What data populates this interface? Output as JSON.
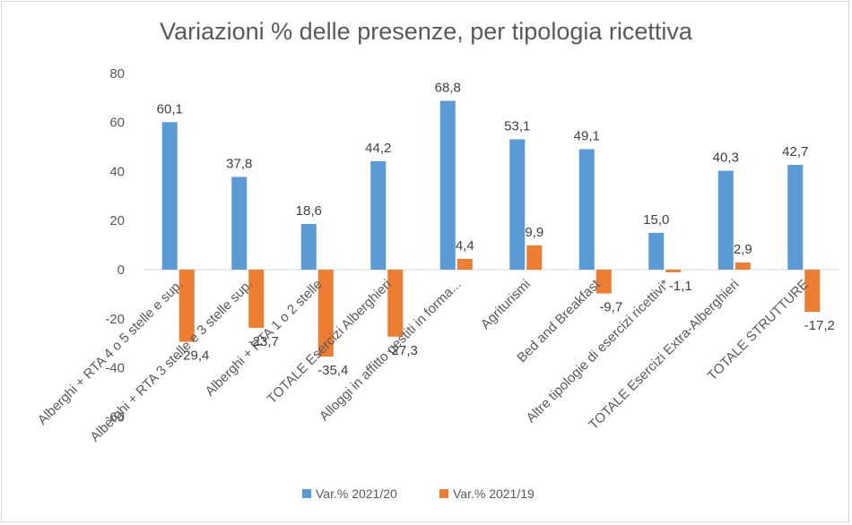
{
  "chart_data": {
    "type": "bar",
    "title": "Variazioni % delle presenze, per tipologia ricettiva",
    "categories": [
      "Alberghi + RTA 4 o 5 stelle e sup.",
      "Alberghi + RTA 3 stelle e 3 stelle sup.",
      "Alberghi + RTA 1 o 2 stelle",
      "TOTALE Esercizi Alberghieri",
      "Alloggi in affitto gestiti in forma...",
      "Agriturismi",
      "Bed and Breakfast",
      "Altre tipologie di esercizi ricettivi*",
      "TOTALE Esercizi Extra-Alberghieri",
      "TOTALE STRUTTURE"
    ],
    "series": [
      {
        "name": "Var.% 2021/20",
        "color": "#5b9bd5",
        "values": [
          60.1,
          37.8,
          18.6,
          44.2,
          68.8,
          53.1,
          49.1,
          15.0,
          40.3,
          42.7
        ],
        "labels": [
          "60,1",
          "37,8",
          "18,6",
          "44,2",
          "68,8",
          "53,1",
          "49,1",
          "15,0",
          "40,3",
          "42,7"
        ]
      },
      {
        "name": "Var.% 2021/19",
        "color": "#ed7d31",
        "values": [
          -29.4,
          -23.7,
          -35.4,
          -27.3,
          4.4,
          9.9,
          -9.7,
          -1.1,
          2.9,
          -17.2
        ],
        "labels": [
          "-29,4",
          "-23,7",
          "-35,4",
          "-27,3",
          "4,4",
          "9,9",
          "-9,7",
          "-1,1",
          "2,9",
          "-17,2"
        ]
      }
    ],
    "yticks": [
      "80",
      "60",
      "40",
      "20",
      "0",
      "-20",
      "-40",
      "-60"
    ],
    "ylim": [
      -60,
      80
    ],
    "grid": false,
    "legend": "bottom"
  }
}
